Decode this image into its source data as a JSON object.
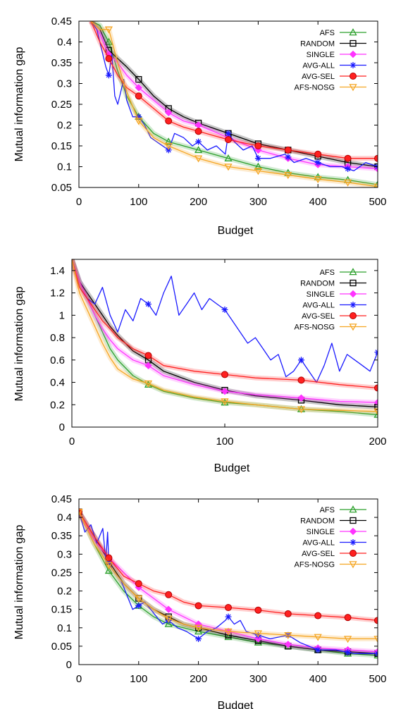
{
  "figure": {
    "series_styles": [
      {
        "name": "AFS",
        "color": "#2ca02c",
        "marker": "triangle-up"
      },
      {
        "name": "RANDOM",
        "color": "#000000",
        "marker": "square"
      },
      {
        "name": "SINGLE",
        "color": "#ff33ff",
        "marker": "diamond"
      },
      {
        "name": "AVG-ALL",
        "color": "#1a1aff",
        "marker": "asterisk"
      },
      {
        "name": "AVG-SEL",
        "color": "#ff2020",
        "marker": "circle"
      },
      {
        "name": "AFS-NOSG",
        "color": "#f5a623",
        "marker": "triangle-down"
      }
    ]
  },
  "chart_data": [
    {
      "type": "line",
      "xlabel": "Budget",
      "ylabel": "Mutual information gap",
      "xlim": [
        0,
        500
      ],
      "ylim": [
        0.05,
        0.45
      ],
      "xticks": [
        0,
        100,
        200,
        300,
        400,
        500
      ],
      "yticks": [
        0.05,
        0.1,
        0.15,
        0.2,
        0.25,
        0.3,
        0.35,
        0.4,
        0.45
      ],
      "legend_position": "top-right",
      "series": [
        {
          "name": "AFS",
          "x": [
            20,
            35,
            50,
            65,
            80,
            100,
            125,
            150,
            175,
            200,
            250,
            300,
            350,
            400,
            450,
            500
          ],
          "y": [
            0.45,
            0.44,
            0.4,
            0.33,
            0.27,
            0.22,
            0.18,
            0.16,
            0.15,
            0.14,
            0.12,
            0.1,
            0.085,
            0.075,
            0.068,
            0.057
          ]
        },
        {
          "name": "RANDOM",
          "x": [
            20,
            35,
            50,
            65,
            80,
            100,
            125,
            150,
            175,
            200,
            250,
            300,
            350,
            400,
            450,
            500
          ],
          "y": [
            0.45,
            0.43,
            0.38,
            0.36,
            0.34,
            0.31,
            0.27,
            0.24,
            0.22,
            0.205,
            0.18,
            0.155,
            0.14,
            0.125,
            0.11,
            0.1
          ]
        },
        {
          "name": "SINGLE",
          "x": [
            20,
            35,
            50,
            65,
            80,
            100,
            125,
            150,
            175,
            200,
            250,
            300,
            350,
            400,
            450,
            500
          ],
          "y": [
            0.45,
            0.42,
            0.37,
            0.35,
            0.32,
            0.29,
            0.26,
            0.23,
            0.21,
            0.2,
            0.17,
            0.14,
            0.12,
            0.105,
            0.1,
            0.095
          ]
        },
        {
          "name": "AVG-ALL",
          "x": [
            20,
            30,
            45,
            50,
            55,
            60,
            65,
            75,
            80,
            90,
            100,
            110,
            120,
            130,
            140,
            150,
            160,
            175,
            190,
            200,
            215,
            230,
            245,
            250,
            260,
            275,
            290,
            300,
            320,
            345,
            360,
            380,
            400,
            420,
            440,
            460,
            480,
            500
          ],
          "y": [
            0.45,
            0.43,
            0.34,
            0.32,
            0.37,
            0.27,
            0.25,
            0.31,
            0.26,
            0.22,
            0.22,
            0.2,
            0.17,
            0.16,
            0.15,
            0.14,
            0.18,
            0.17,
            0.15,
            0.16,
            0.14,
            0.15,
            0.13,
            0.18,
            0.16,
            0.14,
            0.15,
            0.12,
            0.12,
            0.13,
            0.11,
            0.12,
            0.11,
            0.1,
            0.1,
            0.09,
            0.11,
            0.1
          ]
        },
        {
          "name": "AVG-SEL",
          "x": [
            20,
            35,
            50,
            65,
            80,
            100,
            125,
            150,
            175,
            200,
            250,
            300,
            350,
            400,
            450,
            500
          ],
          "y": [
            0.45,
            0.4,
            0.36,
            0.32,
            0.29,
            0.27,
            0.24,
            0.21,
            0.195,
            0.185,
            0.165,
            0.15,
            0.14,
            0.13,
            0.12,
            0.12
          ]
        },
        {
          "name": "AFS-NOSG",
          "x": [
            20,
            35,
            50,
            65,
            80,
            100,
            125,
            150,
            175,
            200,
            250,
            300,
            350,
            400,
            450,
            500
          ],
          "y": [
            0.45,
            0.43,
            0.43,
            0.35,
            0.28,
            0.21,
            0.17,
            0.15,
            0.135,
            0.12,
            0.1,
            0.09,
            0.08,
            0.07,
            0.062,
            0.052
          ]
        }
      ]
    },
    {
      "type": "line",
      "xlabel": "Budget",
      "ylabel": "Mutual information gap",
      "xlim": [
        0,
        200
      ],
      "ylim": [
        0,
        1.5
      ],
      "xticks": [
        0,
        100,
        200
      ],
      "yticks": [
        0,
        0.2,
        0.4,
        0.6,
        0.8,
        1,
        1.2,
        1.4
      ],
      "legend_position": "top-right",
      "series": [
        {
          "name": "AFS",
          "x": [
            0,
            5,
            10,
            15,
            20,
            25,
            30,
            40,
            50,
            60,
            80,
            100,
            120,
            150,
            175,
            200
          ],
          "y": [
            1.5,
            1.3,
            1.15,
            1.0,
            0.85,
            0.7,
            0.6,
            0.46,
            0.38,
            0.32,
            0.26,
            0.22,
            0.2,
            0.16,
            0.14,
            0.11
          ]
        },
        {
          "name": "RANDOM",
          "x": [
            0,
            5,
            10,
            15,
            20,
            25,
            30,
            40,
            50,
            60,
            80,
            100,
            120,
            150,
            175,
            200
          ],
          "y": [
            1.5,
            1.3,
            1.2,
            1.1,
            1.0,
            0.9,
            0.82,
            0.68,
            0.6,
            0.5,
            0.4,
            0.33,
            0.28,
            0.24,
            0.2,
            0.18
          ]
        },
        {
          "name": "SINGLE",
          "x": [
            0,
            5,
            10,
            15,
            20,
            25,
            30,
            40,
            50,
            60,
            80,
            100,
            120,
            150,
            175,
            200
          ],
          "y": [
            1.5,
            1.3,
            1.15,
            1.0,
            0.88,
            0.78,
            0.7,
            0.6,
            0.55,
            0.46,
            0.38,
            0.32,
            0.29,
            0.26,
            0.23,
            0.22
          ]
        },
        {
          "name": "AVG-ALL",
          "x": [
            0,
            5,
            10,
            15,
            20,
            25,
            30,
            35,
            40,
            45,
            50,
            55,
            60,
            65,
            70,
            75,
            80,
            85,
            90,
            95,
            100,
            105,
            110,
            115,
            120,
            125,
            130,
            135,
            140,
            145,
            150,
            155,
            160,
            165,
            170,
            175,
            180,
            185,
            190,
            195,
            200
          ],
          "y": [
            1.5,
            1.25,
            1.15,
            1.1,
            1.25,
            1.0,
            0.85,
            1.05,
            0.95,
            1.15,
            1.1,
            1.0,
            1.2,
            1.35,
            1.0,
            1.1,
            1.2,
            1.05,
            1.15,
            1.1,
            1.05,
            0.95,
            0.85,
            0.75,
            0.8,
            0.7,
            0.6,
            0.65,
            0.45,
            0.5,
            0.6,
            0.5,
            0.4,
            0.55,
            0.75,
            0.5,
            0.65,
            0.6,
            0.55,
            0.5,
            0.67
          ]
        },
        {
          "name": "AVG-SEL",
          "x": [
            0,
            5,
            10,
            15,
            20,
            25,
            30,
            40,
            50,
            60,
            80,
            100,
            120,
            150,
            175,
            200
          ],
          "y": [
            1.5,
            1.25,
            1.15,
            1.05,
            0.95,
            0.88,
            0.8,
            0.7,
            0.64,
            0.55,
            0.5,
            0.47,
            0.44,
            0.42,
            0.38,
            0.35
          ]
        },
        {
          "name": "AFS-NOSG",
          "x": [
            0,
            5,
            10,
            15,
            20,
            25,
            30,
            40,
            50,
            60,
            80,
            100,
            120,
            150,
            175,
            200
          ],
          "y": [
            1.5,
            1.2,
            1.05,
            0.9,
            0.75,
            0.62,
            0.52,
            0.43,
            0.39,
            0.33,
            0.27,
            0.23,
            0.2,
            0.16,
            0.15,
            0.14
          ]
        }
      ]
    },
    {
      "type": "line",
      "xlabel": "Budget",
      "ylabel": "Mutual information gap",
      "xlim": [
        0,
        500
      ],
      "ylim": [
        0,
        0.45
      ],
      "xticks": [
        0,
        100,
        200,
        300,
        400,
        500
      ],
      "yticks": [
        0,
        0.05,
        0.1,
        0.15,
        0.2,
        0.25,
        0.3,
        0.35,
        0.4,
        0.45
      ],
      "legend_position": "top-right",
      "series": [
        {
          "name": "AFS",
          "x": [
            0,
            25,
            50,
            75,
            100,
            125,
            150,
            175,
            200,
            250,
            300,
            350,
            400,
            450,
            500
          ],
          "y": [
            0.415,
            0.33,
            0.255,
            0.2,
            0.16,
            0.13,
            0.11,
            0.1,
            0.09,
            0.075,
            0.06,
            0.05,
            0.04,
            0.03,
            0.025
          ]
        },
        {
          "name": "RANDOM",
          "x": [
            0,
            25,
            50,
            75,
            100,
            125,
            150,
            175,
            200,
            250,
            300,
            350,
            400,
            450,
            500
          ],
          "y": [
            0.415,
            0.35,
            0.28,
            0.22,
            0.18,
            0.15,
            0.13,
            0.11,
            0.1,
            0.08,
            0.065,
            0.05,
            0.04,
            0.035,
            0.03
          ]
        },
        {
          "name": "SINGLE",
          "x": [
            0,
            25,
            50,
            75,
            100,
            125,
            150,
            175,
            200,
            250,
            300,
            350,
            400,
            450,
            500
          ],
          "y": [
            0.415,
            0.34,
            0.29,
            0.25,
            0.21,
            0.18,
            0.15,
            0.13,
            0.11,
            0.09,
            0.07,
            0.055,
            0.045,
            0.04,
            0.035
          ]
        },
        {
          "name": "AVG-ALL",
          "x": [
            0,
            10,
            20,
            30,
            40,
            45,
            48,
            50,
            55,
            60,
            70,
            80,
            90,
            100,
            110,
            125,
            140,
            150,
            165,
            180,
            200,
            215,
            230,
            245,
            250,
            260,
            270,
            280,
            300,
            320,
            350,
            370,
            400,
            430,
            460,
            500
          ],
          "y": [
            0.415,
            0.36,
            0.38,
            0.33,
            0.37,
            0.28,
            0.36,
            0.28,
            0.26,
            0.25,
            0.23,
            0.19,
            0.15,
            0.16,
            0.17,
            0.14,
            0.11,
            0.12,
            0.1,
            0.09,
            0.07,
            0.09,
            0.1,
            0.12,
            0.13,
            0.11,
            0.12,
            0.09,
            0.08,
            0.07,
            0.08,
            0.06,
            0.04,
            0.04,
            0.03,
            0.03
          ]
        },
        {
          "name": "AVG-SEL",
          "x": [
            0,
            25,
            50,
            75,
            100,
            125,
            150,
            175,
            200,
            250,
            300,
            350,
            400,
            450,
            500
          ],
          "y": [
            0.415,
            0.35,
            0.29,
            0.24,
            0.22,
            0.2,
            0.19,
            0.17,
            0.16,
            0.155,
            0.148,
            0.138,
            0.133,
            0.128,
            0.12
          ]
        },
        {
          "name": "AFS-NOSG",
          "x": [
            0,
            25,
            50,
            75,
            100,
            125,
            150,
            175,
            200,
            250,
            300,
            350,
            400,
            450,
            500
          ],
          "y": [
            0.415,
            0.33,
            0.27,
            0.22,
            0.18,
            0.15,
            0.125,
            0.11,
            0.1,
            0.09,
            0.085,
            0.08,
            0.075,
            0.07,
            0.07
          ]
        }
      ]
    }
  ]
}
